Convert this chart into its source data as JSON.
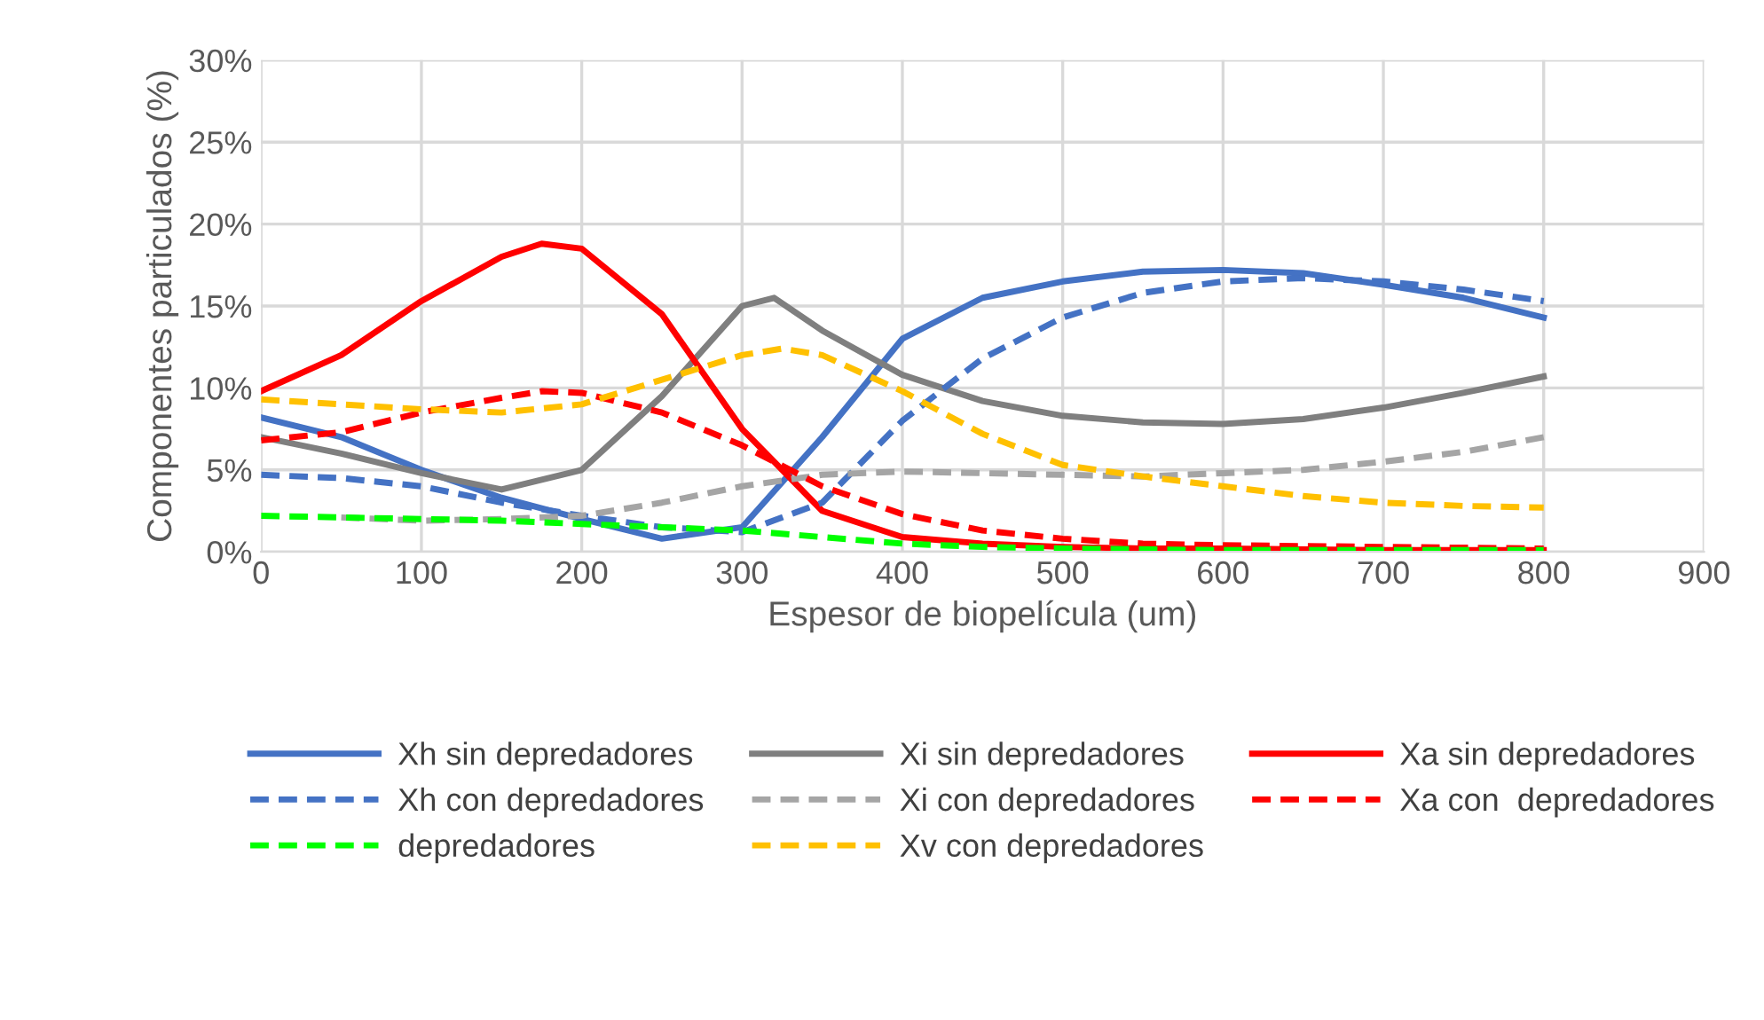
{
  "chart_data": {
    "type": "line",
    "xlabel": "Espesor de biopelícula (um)",
    "ylabel": "Componentes particulados (%)",
    "xlim": [
      0,
      900
    ],
    "xticks": [
      0,
      100,
      200,
      300,
      400,
      500,
      600,
      700,
      800,
      900
    ],
    "ylim": [
      0,
      30
    ],
    "yticks": [
      {
        "value": 0,
        "label": "0%"
      },
      {
        "value": 5,
        "label": "5%"
      },
      {
        "value": 10,
        "label": "10%"
      },
      {
        "value": 15,
        "label": "15%"
      },
      {
        "value": 20,
        "label": "20%"
      },
      {
        "value": 25,
        "label": "25%"
      },
      {
        "value": 30,
        "label": "30%"
      }
    ],
    "grid": true,
    "legend": "bottom",
    "marker": "none",
    "series": [
      {
        "name": "Xh sin depredadores",
        "color": "#4472c4",
        "line_style": "solid",
        "x": [
          0,
          50,
          100,
          150,
          200,
          250,
          300,
          350,
          400,
          450,
          500,
          550,
          600,
          650,
          700,
          750,
          800
        ],
        "values": [
          8.2,
          7.0,
          5.0,
          3.3,
          2.0,
          0.8,
          1.5,
          7.0,
          13.0,
          15.5,
          16.5,
          17.1,
          17.2,
          17.0,
          16.3,
          15.5,
          14.3
        ]
      },
      {
        "name": "Xi sin depredadores",
        "color": "#7f7f7f",
        "line_style": "solid",
        "x": [
          0,
          50,
          100,
          150,
          200,
          250,
          300,
          320,
          350,
          400,
          450,
          500,
          550,
          600,
          650,
          700,
          750,
          800
        ],
        "values": [
          7.0,
          6.0,
          4.8,
          3.8,
          5.0,
          9.5,
          15.0,
          15.5,
          13.5,
          10.8,
          9.2,
          8.3,
          7.9,
          7.8,
          8.1,
          8.8,
          9.7,
          10.7
        ]
      },
      {
        "name": "Xa sin depredadores",
        "color": "#ff0000",
        "line_style": "solid",
        "x": [
          0,
          50,
          100,
          150,
          175,
          200,
          250,
          300,
          350,
          400,
          450,
          500,
          550,
          600,
          700,
          800
        ],
        "values": [
          9.8,
          12.0,
          15.3,
          18.0,
          18.8,
          18.5,
          14.5,
          7.5,
          2.5,
          0.9,
          0.5,
          0.3,
          0.2,
          0.2,
          0.1,
          0.1
        ]
      },
      {
        "name": "Xh con depredadores",
        "color": "#4472c4",
        "line_style": "dashed",
        "x": [
          0,
          50,
          100,
          150,
          200,
          250,
          300,
          350,
          400,
          450,
          500,
          550,
          600,
          650,
          700,
          750,
          800
        ],
        "values": [
          4.7,
          4.5,
          4.0,
          3.0,
          2.2,
          1.5,
          1.2,
          3.0,
          8.0,
          11.8,
          14.3,
          15.8,
          16.5,
          16.7,
          16.5,
          16.0,
          15.3
        ]
      },
      {
        "name": "Xi con depredadores",
        "color": "#a5a5a5",
        "line_style": "dashed",
        "x": [
          50,
          100,
          150,
          200,
          250,
          300,
          350,
          400,
          450,
          500,
          550,
          600,
          650,
          700,
          750,
          800
        ],
        "values": [
          2.1,
          1.9,
          2.0,
          2.2,
          3.0,
          4.0,
          4.7,
          4.9,
          4.8,
          4.7,
          4.6,
          4.8,
          5.0,
          5.5,
          6.1,
          7.0
        ]
      },
      {
        "name": "Xa con  depredadores",
        "color": "#ff0000",
        "line_style": "dashed",
        "x": [
          0,
          50,
          100,
          150,
          175,
          200,
          250,
          300,
          350,
          400,
          450,
          500,
          550,
          600,
          700,
          800
        ],
        "values": [
          6.8,
          7.3,
          8.5,
          9.4,
          9.8,
          9.7,
          8.5,
          6.5,
          4.0,
          2.3,
          1.3,
          0.8,
          0.5,
          0.4,
          0.3,
          0.2
        ]
      },
      {
        "name": "depredadores",
        "color": "#00ff00",
        "line_style": "dashed",
        "x": [
          0,
          50,
          100,
          150,
          200,
          250,
          300,
          350,
          400,
          450,
          500,
          600,
          700,
          800
        ],
        "values": [
          2.2,
          2.1,
          2.0,
          1.9,
          1.7,
          1.5,
          1.3,
          0.9,
          0.5,
          0.3,
          0.2,
          0.1,
          0.1,
          0.1
        ]
      },
      {
        "name": "Xv con depredadores",
        "color": "#ffc000",
        "line_style": "dashed",
        "x": [
          0,
          50,
          100,
          150,
          200,
          250,
          300,
          325,
          350,
          400,
          450,
          500,
          550,
          600,
          650,
          700,
          750,
          800
        ],
        "values": [
          9.3,
          9.0,
          8.7,
          8.5,
          9.0,
          10.5,
          12.0,
          12.4,
          12.0,
          9.8,
          7.2,
          5.3,
          4.6,
          4.0,
          3.4,
          3.0,
          2.8,
          2.7
        ]
      }
    ]
  }
}
